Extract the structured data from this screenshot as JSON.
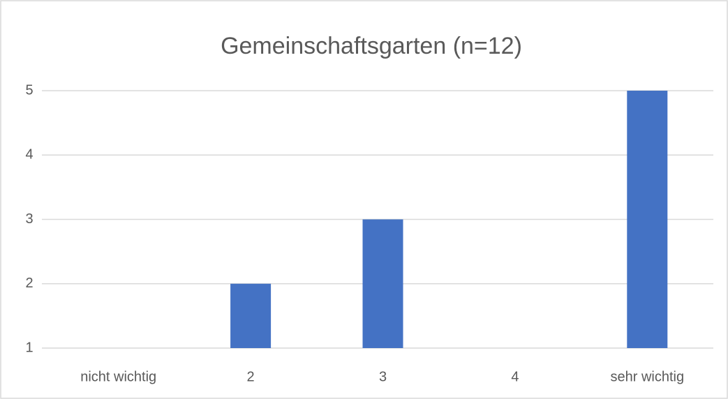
{
  "chart_data": {
    "type": "bar",
    "title": "Gemeinschaftsgarten (n=12)",
    "categories": [
      "nicht wichtig",
      "2",
      "3",
      "4",
      "sehr wichtig"
    ],
    "values": [
      1,
      2,
      3,
      1,
      5
    ],
    "color": "#4472c4",
    "ylim": [
      1,
      5
    ],
    "yticks": [
      1,
      2,
      3,
      4,
      5
    ],
    "grid": true
  }
}
